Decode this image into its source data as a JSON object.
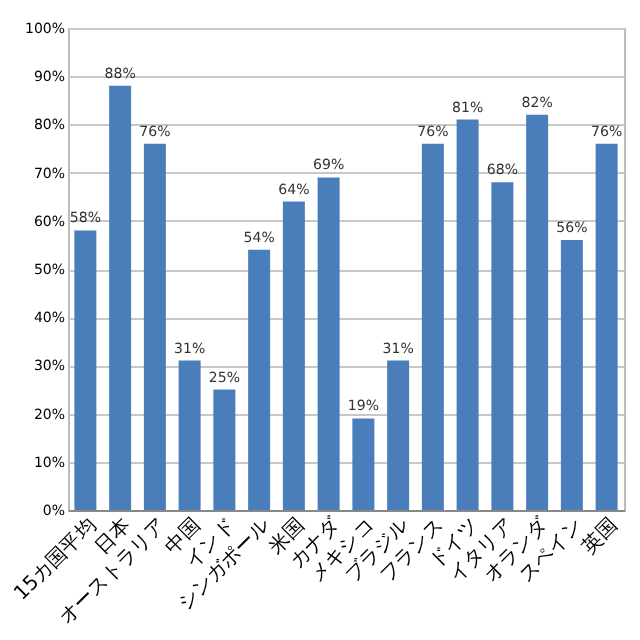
{
  "chart_data": {
    "type": "bar",
    "categories": [
      "15カ国平均",
      "日本",
      "オーストラリア",
      "中国",
      "インド",
      "シンガポール",
      "米国",
      "カナダ",
      "メキシコ",
      "ブラジル",
      "フランス",
      "ドイツ",
      "イタリア",
      "オランダ",
      "スペイン",
      "英国"
    ],
    "values": [
      58,
      88,
      76,
      31,
      25,
      54,
      64,
      69,
      19,
      31,
      76,
      81,
      68,
      82,
      56,
      76
    ],
    "value_labels": [
      "58%",
      "88%",
      "76%",
      "31%",
      "25%",
      "54%",
      "64%",
      "69%",
      "19%",
      "31%",
      "76%",
      "81%",
      "68%",
      "82%",
      "56%",
      "76%"
    ],
    "color": "#4a7ebb",
    "ylim": [
      0,
      100
    ],
    "yticks": [
      {
        "value": 0,
        "label": "0%"
      },
      {
        "value": 10,
        "label": "10%"
      },
      {
        "value": 20,
        "label": "20%"
      },
      {
        "value": 30,
        "label": "30%"
      },
      {
        "value": 40,
        "label": "40%"
      },
      {
        "value": 50,
        "label": "50%"
      },
      {
        "value": 60,
        "label": "60%"
      },
      {
        "value": 70,
        "label": "70%"
      },
      {
        "value": 80,
        "label": "80%"
      },
      {
        "value": 90,
        "label": "90%"
      },
      {
        "value": 100,
        "label": "100%"
      }
    ],
    "grid": "y"
  }
}
